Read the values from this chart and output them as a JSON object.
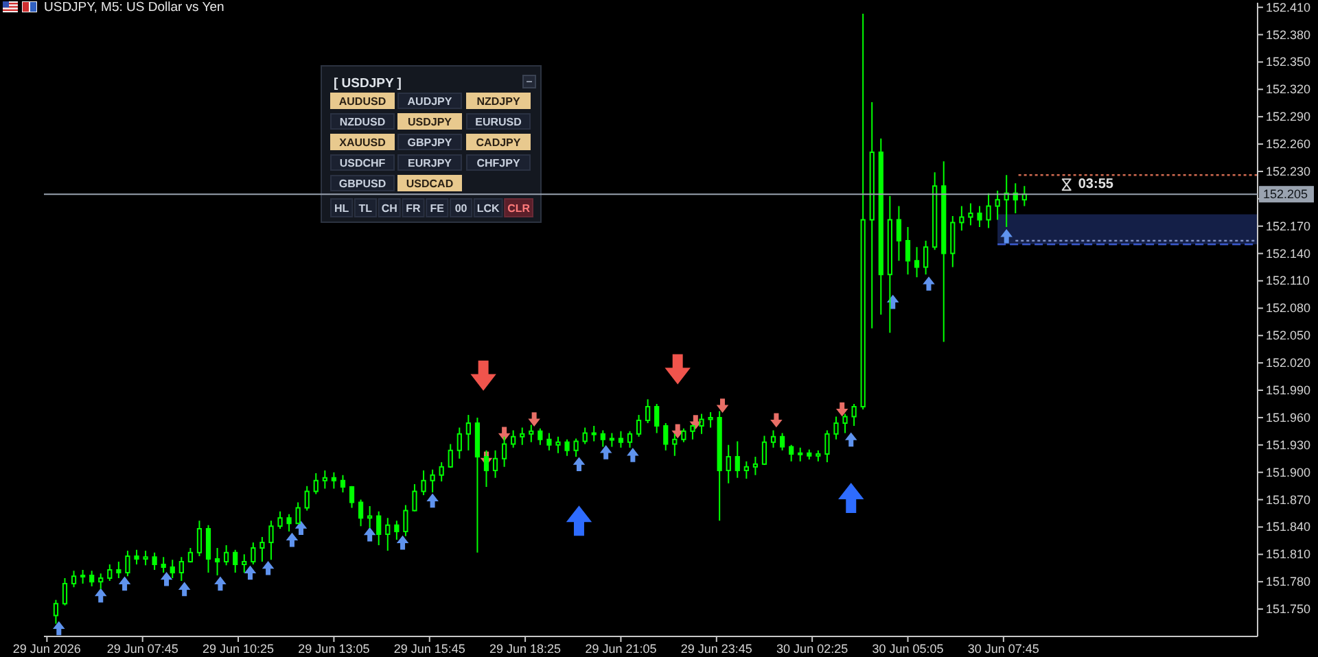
{
  "chart_data": {
    "type": "candlestick",
    "title": "USDJPY, M5: US Dollar vs Yen",
    "color": "#00ff00",
    "x": [
      "2026-06-29T05:20",
      "2026-06-29T05:35",
      "2026-06-29T05:50",
      "2026-06-29T06:05",
      "2026-06-29T06:20",
      "2026-06-29T06:35",
      "2026-06-29T06:50",
      "2026-06-29T07:05",
      "2026-06-29T07:20",
      "2026-06-29T07:35",
      "2026-06-29T07:50",
      "2026-06-29T08:05",
      "2026-06-29T08:20",
      "2026-06-29T08:35",
      "2026-06-29T08:50",
      "2026-06-29T09:05",
      "2026-06-29T09:20",
      "2026-06-29T09:35",
      "2026-06-29T09:50",
      "2026-06-29T10:05",
      "2026-06-29T10:20",
      "2026-06-29T10:35",
      "2026-06-29T10:50",
      "2026-06-29T11:05",
      "2026-06-29T11:20",
      "2026-06-29T11:35",
      "2026-06-29T11:50",
      "2026-06-29T12:05",
      "2026-06-29T12:20",
      "2026-06-29T12:35",
      "2026-06-29T12:50",
      "2026-06-29T13:05",
      "2026-06-29T13:20",
      "2026-06-29T13:35",
      "2026-06-29T13:50",
      "2026-06-29T14:05",
      "2026-06-29T14:20",
      "2026-06-29T14:35",
      "2026-06-29T14:50",
      "2026-06-29T15:05",
      "2026-06-29T15:20",
      "2026-06-29T15:35",
      "2026-06-29T15:50",
      "2026-06-29T16:05",
      "2026-06-29T16:20",
      "2026-06-29T16:35",
      "2026-06-29T16:50",
      "2026-06-29T17:05",
      "2026-06-29T17:20",
      "2026-06-29T17:35",
      "2026-06-29T17:50",
      "2026-06-29T18:05",
      "2026-06-29T18:20",
      "2026-06-29T18:35",
      "2026-06-29T18:50",
      "2026-06-29T19:05",
      "2026-06-29T19:20",
      "2026-06-29T19:35",
      "2026-06-29T19:50",
      "2026-06-29T20:05",
      "2026-06-29T20:20",
      "2026-06-29T20:35",
      "2026-06-29T20:50",
      "2026-06-29T21:05",
      "2026-06-29T21:20",
      "2026-06-29T21:35",
      "2026-06-29T21:50",
      "2026-06-29T22:05",
      "2026-06-29T22:20",
      "2026-06-29T22:35",
      "2026-06-29T22:50",
      "2026-06-29T23:05",
      "2026-06-29T23:20",
      "2026-06-29T23:35",
      "2026-06-29T23:50",
      "2026-06-30T00:05",
      "2026-06-30T00:20",
      "2026-06-30T00:35",
      "2026-06-30T00:50",
      "2026-06-30T01:05",
      "2026-06-30T01:20",
      "2026-06-30T01:35",
      "2026-06-30T01:50",
      "2026-06-30T02:05",
      "2026-06-30T02:20",
      "2026-06-30T02:35",
      "2026-06-30T02:50",
      "2026-06-30T03:05",
      "2026-06-30T03:20",
      "2026-06-30T03:35",
      "2026-06-30T03:50",
      "2026-06-30T04:05",
      "2026-06-30T04:20",
      "2026-06-30T04:35",
      "2026-06-30T04:50",
      "2026-06-30T05:05",
      "2026-06-30T05:20",
      "2026-06-30T05:35",
      "2026-06-30T05:50",
      "2026-06-30T06:05",
      "2026-06-30T06:20",
      "2026-06-30T06:35",
      "2026-06-30T06:50",
      "2026-06-30T07:05",
      "2026-06-30T07:20",
      "2026-06-30T07:35",
      "2026-06-30T07:50",
      "2026-06-30T08:05",
      "2026-06-30T08:20"
    ],
    "ohlc": [
      [
        151.743,
        151.76,
        151.734,
        151.756
      ],
      [
        151.756,
        151.784,
        151.754,
        151.778
      ],
      [
        151.778,
        151.792,
        151.774,
        151.786
      ],
      [
        151.786,
        151.793,
        151.778,
        151.787
      ],
      [
        151.787,
        151.792,
        151.775,
        151.78
      ],
      [
        151.78,
        151.789,
        151.772,
        151.784
      ],
      [
        151.784,
        151.799,
        151.781,
        151.793
      ],
      [
        151.793,
        151.802,
        151.784,
        151.79
      ],
      [
        151.79,
        151.814,
        151.786,
        151.808
      ],
      [
        151.808,
        151.815,
        151.799,
        151.805
      ],
      [
        151.805,
        151.814,
        151.798,
        151.807
      ],
      [
        151.807,
        151.812,
        151.793,
        151.799
      ],
      [
        151.799,
        151.807,
        151.79,
        151.796
      ],
      [
        151.796,
        151.804,
        151.784,
        151.79
      ],
      [
        151.79,
        151.807,
        151.781,
        151.802
      ],
      [
        151.802,
        151.817,
        151.801,
        151.812
      ],
      [
        151.812,
        151.847,
        151.808,
        151.838
      ],
      [
        151.838,
        151.842,
        151.79,
        151.805
      ],
      [
        151.805,
        151.817,
        151.787,
        151.802
      ],
      [
        151.802,
        151.82,
        151.798,
        151.812
      ],
      [
        151.812,
        151.815,
        151.79,
        151.799
      ],
      [
        151.799,
        151.81,
        151.79,
        151.802
      ],
      [
        151.802,
        151.823,
        151.799,
        151.817
      ],
      [
        151.817,
        151.829,
        151.802,
        151.823
      ],
      [
        151.823,
        151.847,
        151.804,
        151.841
      ],
      [
        151.841,
        151.857,
        151.838,
        151.85
      ],
      [
        151.85,
        151.854,
        151.835,
        151.844
      ],
      [
        151.844,
        151.867,
        151.844,
        151.861
      ],
      [
        151.861,
        151.885,
        151.858,
        151.879
      ],
      [
        151.879,
        151.899,
        151.876,
        151.891
      ],
      [
        151.891,
        151.902,
        151.882,
        151.894
      ],
      [
        151.894,
        151.9,
        151.882,
        151.891
      ],
      [
        151.891,
        151.897,
        151.878,
        151.884
      ],
      [
        151.884,
        151.885,
        151.861,
        151.867
      ],
      [
        151.867,
        151.87,
        151.841,
        151.85
      ],
      [
        151.85,
        151.863,
        151.839,
        151.852
      ],
      [
        151.852,
        151.857,
        151.82,
        151.832
      ],
      [
        151.832,
        151.85,
        151.814,
        151.842
      ],
      [
        151.842,
        151.847,
        151.826,
        151.835
      ],
      [
        151.835,
        151.864,
        151.83,
        151.858
      ],
      [
        151.858,
        151.887,
        151.857,
        151.879
      ],
      [
        151.879,
        151.902,
        151.875,
        151.891
      ],
      [
        151.891,
        151.903,
        151.878,
        151.897
      ],
      [
        151.897,
        151.911,
        151.89,
        151.906
      ],
      [
        151.906,
        151.931,
        151.905,
        151.924
      ],
      [
        151.924,
        151.949,
        151.915,
        151.942
      ],
      [
        151.942,
        151.963,
        151.924,
        151.954
      ],
      [
        151.954,
        151.96,
        151.812,
        151.917
      ],
      [
        151.917,
        151.924,
        151.884,
        151.902
      ],
      [
        151.902,
        151.924,
        151.894,
        151.915
      ],
      [
        151.915,
        151.939,
        151.906,
        151.931
      ],
      [
        151.931,
        151.946,
        151.927,
        151.939
      ],
      [
        151.939,
        151.949,
        151.93,
        151.942
      ],
      [
        151.942,
        151.952,
        151.933,
        151.945
      ],
      [
        151.945,
        151.948,
        151.93,
        151.936
      ],
      [
        151.936,
        151.943,
        151.924,
        151.93
      ],
      [
        151.93,
        151.939,
        151.921,
        151.933
      ],
      [
        151.933,
        151.936,
        151.918,
        151.924
      ],
      [
        151.924,
        151.937,
        151.917,
        151.934
      ],
      [
        151.934,
        151.949,
        151.931,
        151.943
      ],
      [
        151.943,
        151.951,
        151.934,
        151.942
      ],
      [
        151.942,
        151.946,
        151.928,
        151.936
      ],
      [
        151.936,
        151.943,
        151.928,
        151.937
      ],
      [
        151.937,
        151.945,
        151.927,
        151.933
      ],
      [
        151.933,
        151.945,
        151.927,
        151.942
      ],
      [
        151.942,
        151.963,
        151.939,
        151.957
      ],
      [
        151.957,
        151.98,
        151.954,
        151.972
      ],
      [
        151.972,
        151.975,
        151.943,
        151.951
      ],
      [
        151.951,
        151.954,
        151.924,
        151.931
      ],
      [
        151.931,
        151.942,
        151.918,
        151.936
      ],
      [
        151.936,
        151.948,
        151.933,
        151.945
      ],
      [
        151.945,
        151.952,
        151.936,
        151.951
      ],
      [
        151.951,
        151.964,
        151.942,
        151.958
      ],
      [
        151.958,
        151.966,
        151.949,
        151.96
      ],
      [
        151.96,
        151.967,
        151.847,
        151.902
      ],
      [
        151.902,
        151.93,
        151.888,
        151.917
      ],
      [
        151.917,
        151.934,
        151.894,
        151.902
      ],
      [
        151.902,
        151.912,
        151.893,
        151.906
      ],
      [
        151.906,
        151.917,
        151.897,
        151.909
      ],
      [
        151.909,
        151.94,
        151.908,
        151.933
      ],
      [
        151.933,
        151.946,
        151.927,
        151.939
      ],
      [
        151.939,
        151.943,
        151.924,
        151.928
      ],
      [
        151.928,
        151.93,
        151.912,
        151.92
      ],
      [
        151.92,
        151.927,
        151.912,
        151.921
      ],
      [
        151.921,
        151.925,
        151.914,
        151.918
      ],
      [
        151.918,
        151.924,
        151.912,
        151.92
      ],
      [
        151.92,
        151.946,
        151.911,
        151.942
      ],
      [
        151.942,
        151.961,
        151.936,
        151.954
      ],
      [
        151.954,
        151.964,
        151.943,
        151.961
      ],
      [
        151.961,
        151.975,
        151.951,
        151.972
      ],
      [
        151.972,
        152.403,
        151.969,
        152.177
      ],
      [
        152.177,
        152.306,
        152.058,
        152.251
      ],
      [
        152.251,
        152.266,
        152.073,
        152.117
      ],
      [
        152.117,
        152.203,
        152.053,
        152.177
      ],
      [
        152.177,
        152.192,
        152.132,
        152.154
      ],
      [
        152.154,
        152.169,
        152.117,
        152.132
      ],
      [
        152.132,
        152.147,
        152.114,
        152.125
      ],
      [
        152.125,
        152.154,
        152.117,
        152.147
      ],
      [
        152.147,
        152.229,
        152.144,
        152.214
      ],
      [
        152.214,
        152.241,
        152.043,
        152.14
      ],
      [
        152.14,
        152.181,
        152.125,
        152.174
      ],
      [
        152.174,
        152.192,
        152.165,
        152.18
      ],
      [
        152.18,
        152.195,
        152.171,
        152.184
      ],
      [
        152.184,
        152.192,
        152.169,
        152.177
      ],
      [
        152.177,
        152.206,
        152.168,
        152.192
      ],
      [
        152.192,
        152.209,
        152.177,
        152.199
      ],
      [
        152.199,
        152.226,
        152.169,
        152.206
      ],
      [
        152.206,
        152.217,
        152.184,
        152.199
      ],
      [
        152.199,
        152.214,
        152.192,
        152.205
      ]
    ],
    "series": [
      {
        "type": "line",
        "color": "#3b5bd0",
        "line_style": "dashed",
        "x": [
          "2026-06-30T07:35",
          "2026-06-30T14:50"
        ],
        "values": [
          152.15,
          152.15
        ],
        "lower": [
          152.15,
          152.15
        ],
        "upper": [
          152.183,
          152.183
        ]
      },
      {
        "type": "line",
        "color": "#7f8fc4",
        "line_style": "dotted",
        "x": [
          "2026-06-30T08:05",
          "2026-06-30T14:50"
        ],
        "values": [
          152.154,
          152.154
        ]
      },
      {
        "type": "line",
        "color": "#d06a50",
        "line_style": "dotted",
        "x": [
          "2026-06-30T08:10",
          "2026-06-30T14:50"
        ],
        "values": [
          152.226,
          152.226
        ]
      },
      {
        "type": "bubble",
        "marker": "triangle",
        "color": "#5f93ee",
        "x": [
          "2026-06-29T05:25",
          "2026-06-29T06:35",
          "2026-06-29T07:15",
          "2026-06-29T08:25",
          "2026-06-29T08:55",
          "2026-06-29T09:55",
          "2026-06-29T10:45",
          "2026-06-29T11:15",
          "2026-06-29T11:55",
          "2026-06-29T12:10",
          "2026-06-29T14:05",
          "2026-06-29T15:00",
          "2026-06-29T15:50",
          "2026-06-29T19:55",
          "2026-06-29T20:40",
          "2026-06-29T21:25",
          "2026-06-30T03:30",
          "2026-06-30T04:40",
          "2026-06-30T05:40",
          "2026-06-30T07:50"
        ],
        "values": [
          151.729,
          151.765,
          151.778,
          151.783,
          151.772,
          151.778,
          151.79,
          151.795,
          151.826,
          151.839,
          151.832,
          151.823,
          151.869,
          151.909,
          151.922,
          151.919,
          151.936,
          152.087,
          152.107,
          152.159
        ],
        "sizes": [
          0.22,
          0.22,
          0.22,
          0.22,
          0.22,
          0.22,
          0.22,
          0.22,
          0.22,
          0.22,
          0.22,
          0.22,
          0.22,
          0.22,
          0.22,
          0.22,
          0.22,
          0.22,
          0.22,
          0.22
        ]
      },
      {
        "type": "bubble",
        "marker": "triangle",
        "color": "#e86e66",
        "x": [
          "2026-06-29T17:20",
          "2026-06-29T17:50",
          "2026-06-29T18:40",
          "2026-06-29T22:40",
          "2026-06-29T23:10",
          "2026-06-29T23:55",
          "2026-06-30T01:25",
          "2026-06-30T03:15"
        ],
        "values": [
          151.915,
          151.942,
          151.958,
          151.945,
          151.955,
          151.973,
          151.957,
          151.969
        ],
        "sizes": [
          0.22,
          0.22,
          0.22,
          0.22,
          0.22,
          0.22,
          0.22,
          0.22
        ]
      },
      {
        "type": "bubble",
        "marker": "triangle",
        "color": "#f0544c",
        "x": [
          "2026-06-29T17:15",
          "2026-06-29T22:40"
        ],
        "values": [
          152.006,
          152.013
        ],
        "sizes": [
          1,
          1
        ]
      },
      {
        "type": "bubble",
        "marker": "triangle",
        "color": "#2e6cff",
        "x": [
          "2026-06-29T19:55",
          "2026-06-30T03:30"
        ],
        "values": [
          151.847,
          151.872
        ],
        "sizes": [
          1,
          1
        ]
      }
    ],
    "xlim": [
      "2026-06-29T05:00",
      "2026-06-30T14:50"
    ],
    "xticks": [
      {
        "value": "2026-06-29T05:05",
        "label": "29 Jun 2026"
      },
      {
        "value": "2026-06-29T07:45",
        "label": "29 Jun 07:45"
      },
      {
        "value": "2026-06-29T10:25",
        "label": "29 Jun 10:25"
      },
      {
        "value": "2026-06-29T13:05",
        "label": "29 Jun 13:05"
      },
      {
        "value": "2026-06-29T15:45",
        "label": "29 Jun 15:45"
      },
      {
        "value": "2026-06-29T18:25",
        "label": "29 Jun 18:25"
      },
      {
        "value": "2026-06-29T21:05",
        "label": "29 Jun 21:05"
      },
      {
        "value": "2026-06-29T23:45",
        "label": "29 Jun 23:45"
      },
      {
        "value": "2026-06-30T02:25",
        "label": "30 Jun 02:25"
      },
      {
        "value": "2026-06-30T05:05",
        "label": "30 Jun 05:05"
      },
      {
        "value": "2026-06-30T07:45",
        "label": "30 Jun 07:45"
      }
    ],
    "ylim": [
      151.72,
      152.415
    ],
    "yticks": [
      {
        "value": 151.75,
        "label": "151.750"
      },
      {
        "value": 151.78,
        "label": "151.780"
      },
      {
        "value": 151.81,
        "label": "151.810"
      },
      {
        "value": 151.84,
        "label": "151.840"
      },
      {
        "value": 151.87,
        "label": "151.870"
      },
      {
        "value": 151.9,
        "label": "151.900"
      },
      {
        "value": 151.93,
        "label": "151.930"
      },
      {
        "value": 151.96,
        "label": "151.960"
      },
      {
        "value": 151.99,
        "label": "151.990"
      },
      {
        "value": 152.02,
        "label": "152.020"
      },
      {
        "value": 152.05,
        "label": "152.050"
      },
      {
        "value": 152.08,
        "label": "152.080"
      },
      {
        "value": 152.11,
        "label": "152.110"
      },
      {
        "value": 152.14,
        "label": "152.140"
      },
      {
        "value": 152.17,
        "label": "152.170"
      },
      {
        "value": 152.2,
        "label": null
      },
      {
        "value": 152.23,
        "label": "152.230"
      },
      {
        "value": 152.26,
        "label": "152.260"
      },
      {
        "value": 152.29,
        "label": "152.290"
      },
      {
        "value": 152.32,
        "label": "152.320"
      },
      {
        "value": 152.35,
        "label": "152.350"
      },
      {
        "value": 152.38,
        "label": "152.380"
      },
      {
        "value": 152.41,
        "label": "152.410"
      }
    ],
    "ref_lines": [
      {
        "axis": "y",
        "value": 152.205,
        "label": "152.205",
        "color": "#9aa3b0"
      }
    ],
    "annotations": [
      "[ USDJPY ]",
      "AUDUSD",
      "AUDJPY",
      "NZDJPY",
      "NZDUSD",
      "USDJPY",
      "EURUSD",
      "XAUUSD",
      "GBPJPY",
      "CADJPY",
      "USDCHF",
      "EURJPY",
      "CHFJPY",
      "GBPUSD",
      "USDCAD",
      "HL",
      "TL",
      "CH",
      "FR",
      "FE",
      "00",
      "LCK",
      "CLR",
      {
        "text": "03:55",
        "x": "2026-06-30T09:50",
        "y": 152.205
      }
    ]
  }
}
